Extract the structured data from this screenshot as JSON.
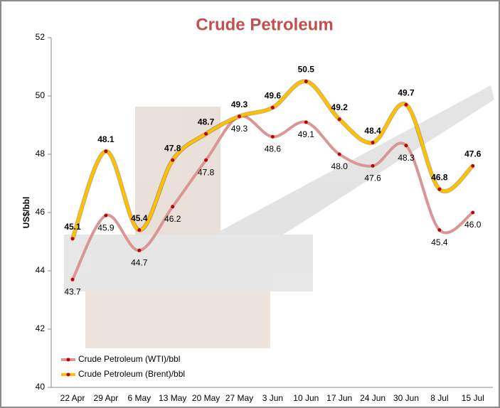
{
  "chart_data": {
    "type": "line",
    "title": "Crude Petroleum",
    "y_label": "US$/bbl",
    "categories": [
      "22 Apr",
      "29 Apr",
      "6 May",
      "13 May",
      "20 May",
      "27 May",
      "3 Jun",
      "10 Jun",
      "17 Jun",
      "24 Jun",
      "30 Jun",
      "8 Jul",
      "15 Jul"
    ],
    "series": [
      {
        "name": "Crude Petroleum (WTI)/bbl",
        "color": "#d99694",
        "values": [
          43.7,
          45.9,
          44.7,
          46.2,
          47.8,
          49.3,
          48.6,
          49.1,
          48.0,
          47.6,
          48.3,
          45.4,
          46.0
        ],
        "value_labels": [
          "43.7",
          "45.9",
          "44.7",
          "46.2",
          "47.8",
          "49.3",
          "48.6",
          "49.1",
          "48.0",
          "47.6",
          "48.3",
          "45.4",
          "46.0"
        ]
      },
      {
        "name": "Crude Petroleum (Brent)/bbl",
        "color": "#ffc000",
        "values": [
          45.1,
          48.1,
          45.4,
          47.8,
          48.7,
          49.3,
          49.6,
          50.5,
          49.2,
          48.4,
          49.7,
          46.8,
          47.6
        ],
        "value_labels": [
          "45.1",
          "48.1",
          "45.4",
          "47.8",
          "48.7",
          "49.3",
          "49.6",
          "50.5",
          "49.2",
          "48.4",
          "49.7",
          "46.8",
          "47.6"
        ]
      }
    ],
    "marker_color": "#c00000",
    "ylim": [
      40,
      52
    ],
    "yticks": [
      40,
      42,
      44,
      46,
      48,
      50,
      52
    ],
    "legend": "lower left"
  }
}
